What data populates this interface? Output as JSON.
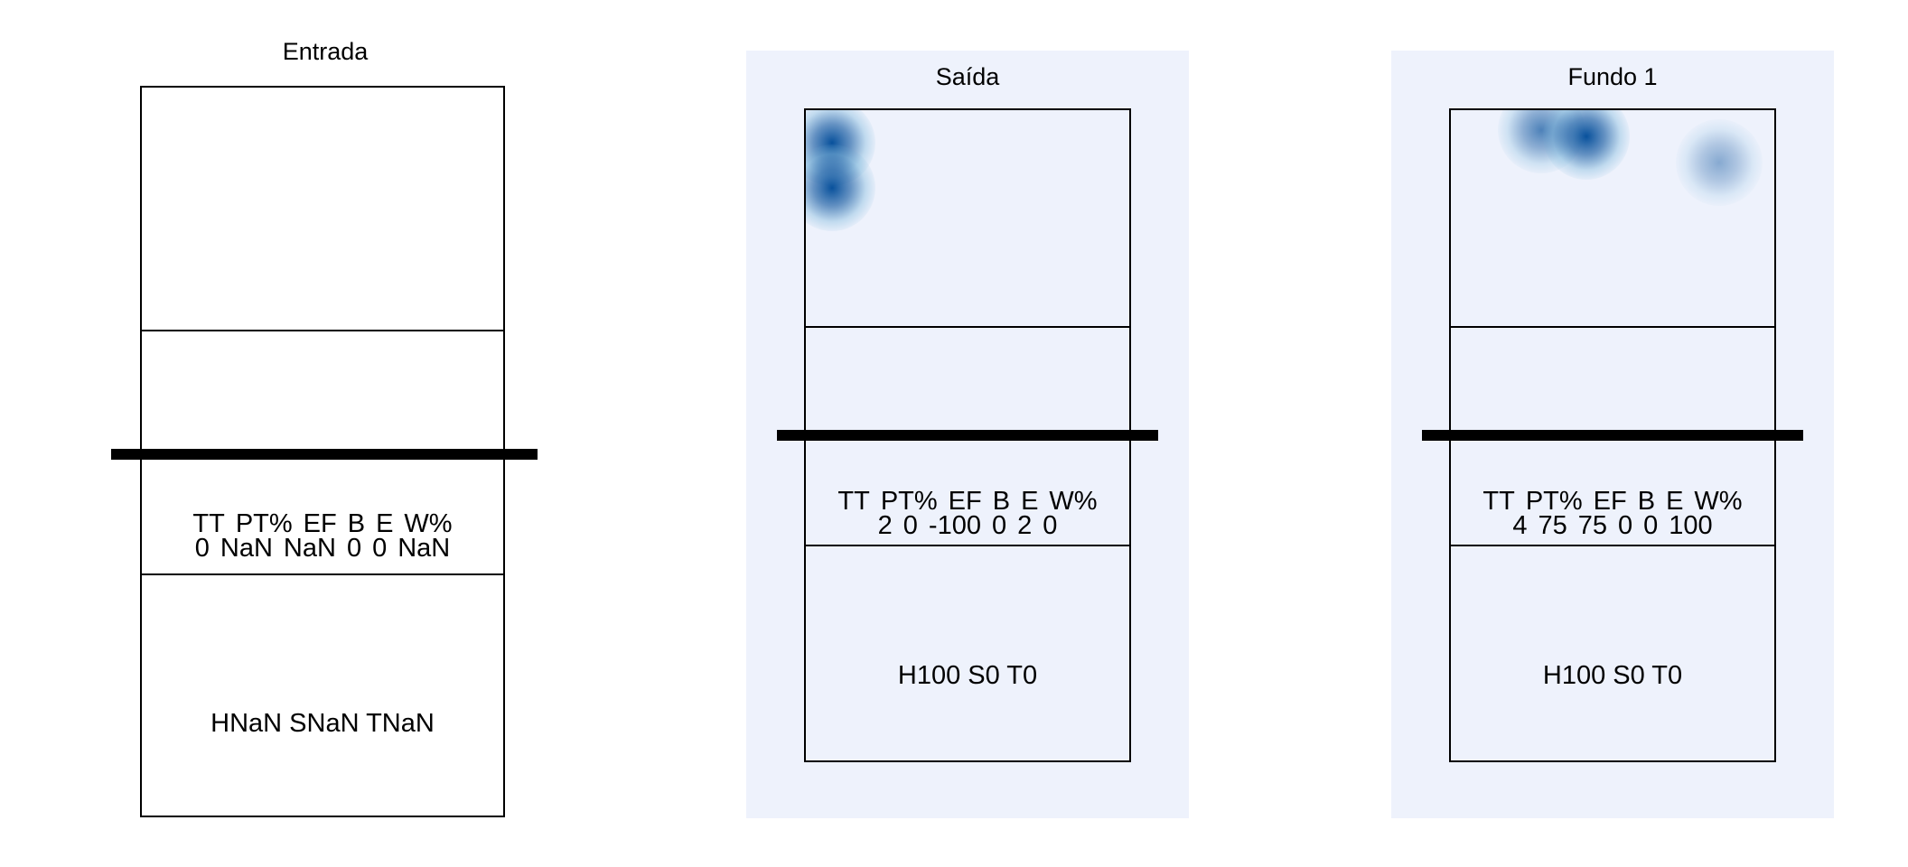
{
  "chart_data": [
    {
      "type": "heatmap",
      "title": "Entrada",
      "stats_headers": [
        "TT",
        "PT%",
        "EF",
        "B",
        "E",
        "W%"
      ],
      "stats_values": [
        "0",
        "NaN",
        "NaN",
        "0",
        "0",
        "NaN"
      ],
      "hst": "HNaN SNaN TNaN",
      "heat_points": [],
      "colors": {
        "background": "#ffffff",
        "heat": "#08519c"
      }
    },
    {
      "type": "heatmap",
      "title": "Saída",
      "stats_headers": [
        "TT",
        "PT%",
        "EF",
        "B",
        "E",
        "W%"
      ],
      "stats_values": [
        "2",
        "0",
        "-100",
        "0",
        "2",
        "0"
      ],
      "hst": "H100 S0 T0",
      "heat_points": [
        {
          "x": 0.08,
          "y": 0.05,
          "intensity": 1.0
        },
        {
          "x": 0.08,
          "y": 0.12,
          "intensity": 1.0
        }
      ],
      "colors": {
        "background": "#eef2fc",
        "heat": "#08519c"
      }
    },
    {
      "type": "heatmap",
      "title": "Fundo 1",
      "stats_headers": [
        "TT",
        "PT%",
        "EF",
        "B",
        "E",
        "W%"
      ],
      "stats_values": [
        "4",
        "75",
        "75",
        "0",
        "0",
        "100"
      ],
      "hst": "H100 S0 T0",
      "heat_points": [
        {
          "x": 0.28,
          "y": 0.03,
          "intensity": 0.7
        },
        {
          "x": 0.42,
          "y": 0.04,
          "intensity": 1.0
        },
        {
          "x": 0.83,
          "y": 0.08,
          "intensity": 0.45
        }
      ],
      "colors": {
        "background": "#eef2fc",
        "heat": "#08519c"
      }
    }
  ]
}
